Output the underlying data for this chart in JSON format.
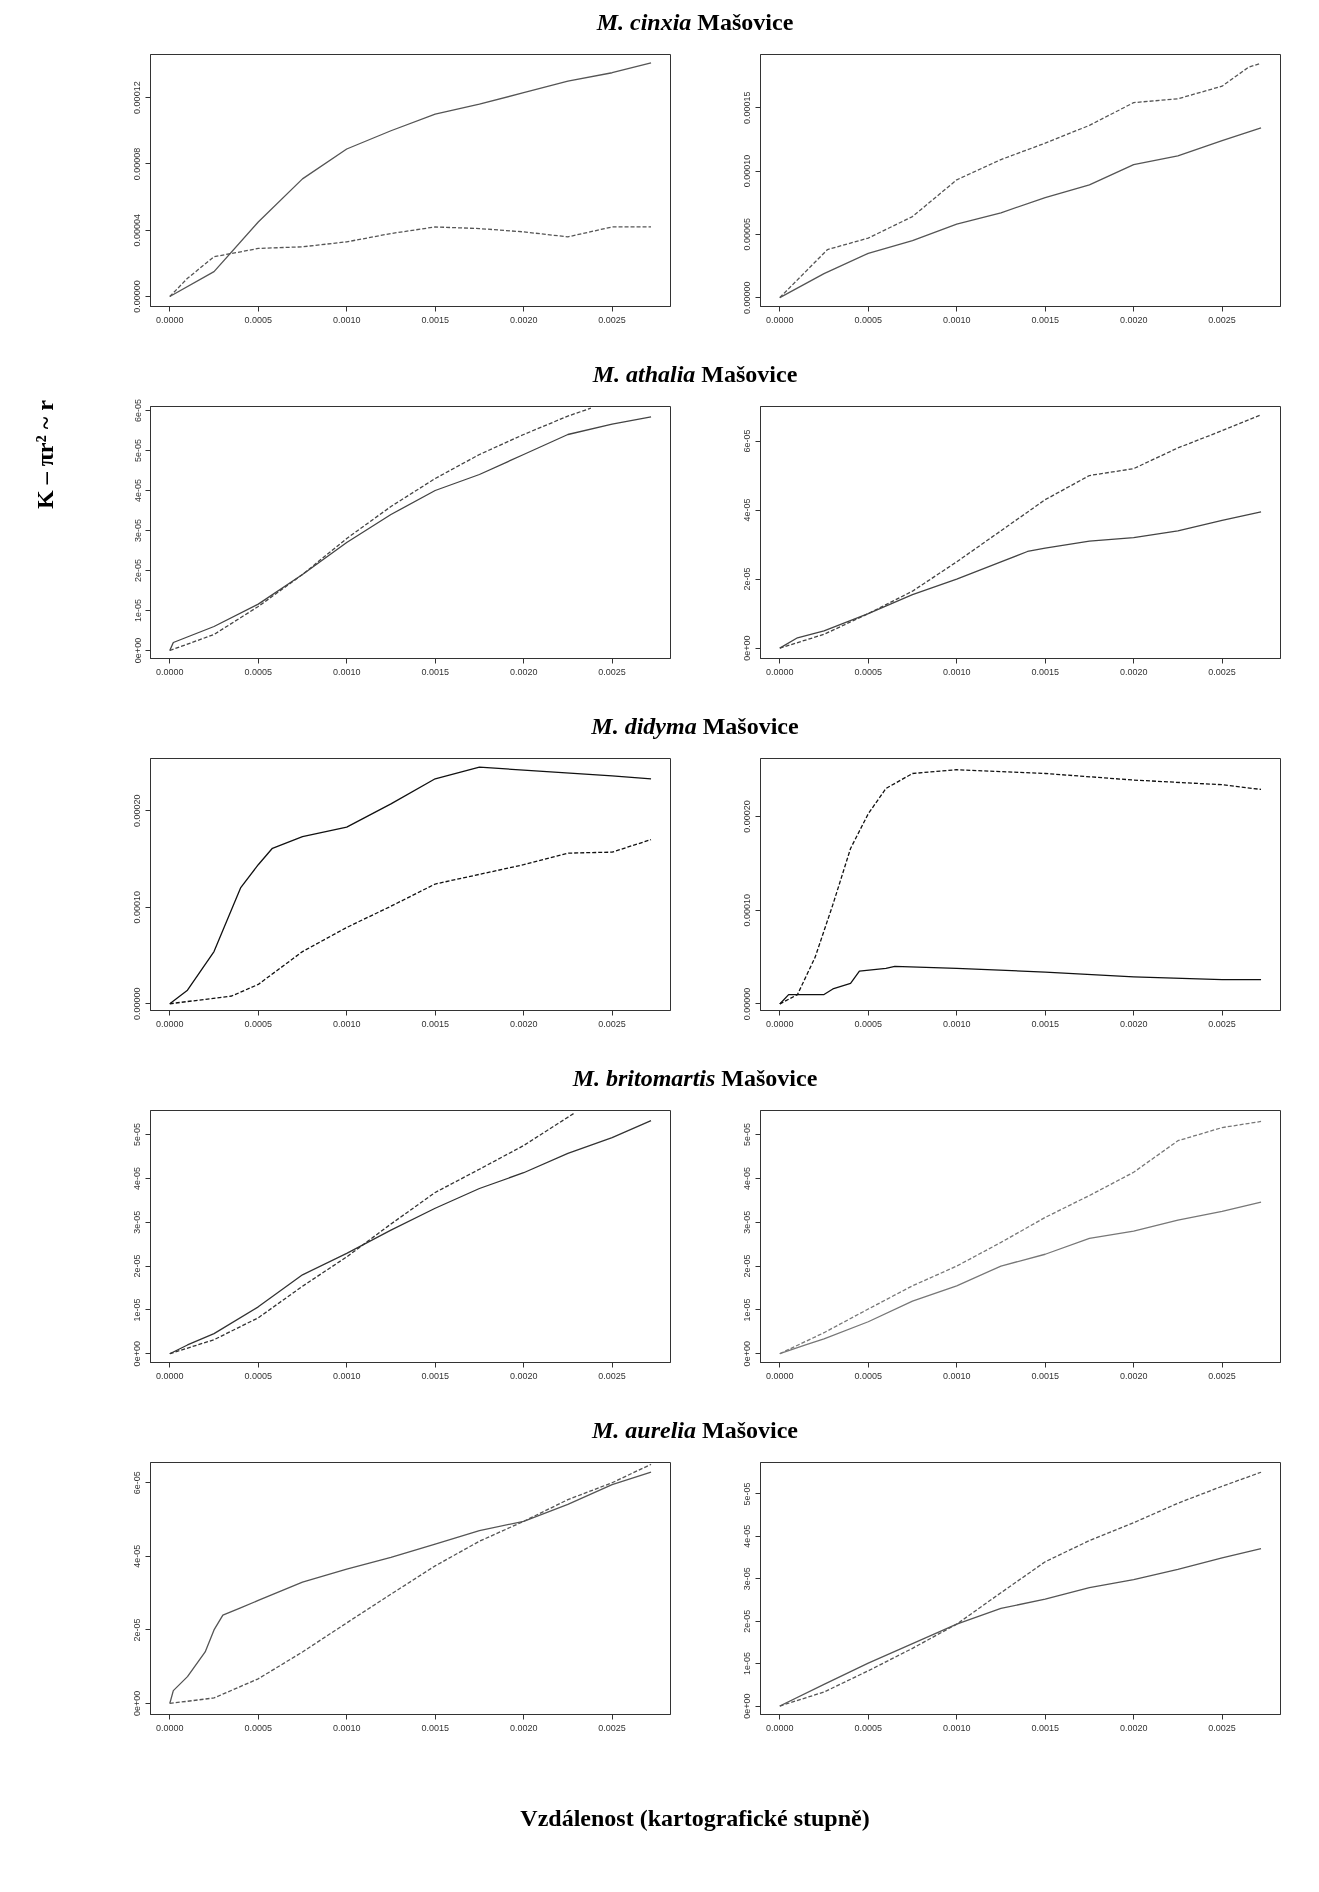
{
  "chart_data": [
    {
      "type": "line",
      "title": "M. cinxia Mašovice",
      "ylabel": "K – πr² ~ r",
      "xlim": [
        -0.000109,
        0.00283
      ],
      "xticks": [
        {
          "value": 0,
          "label": "0.0000"
        },
        {
          "value": 0.0005,
          "label": "0.0005"
        },
        {
          "value": 0.001,
          "label": "0.0010"
        },
        {
          "value": 0.0015,
          "label": "0.0015"
        },
        {
          "value": 0.002,
          "label": "0.0020"
        },
        {
          "value": 0.0025,
          "label": "0.0025"
        }
      ],
      "ylim": [
        -6e-06,
        0.000146
      ],
      "yticks": [
        {
          "value": 0,
          "label": "0.00000"
        },
        {
          "value": 4e-05,
          "label": "0.00004"
        },
        {
          "value": 8e-05,
          "label": "0.00008"
        },
        {
          "value": 0.00012,
          "label": "0.00012"
        }
      ],
      "series": [
        {
          "color": "#555555",
          "line_style": "solid",
          "x": [
            0,
            0.00025,
            0.0005,
            0.00075,
            0.001,
            0.00125,
            0.0015,
            0.00175,
            0.002,
            0.00225,
            0.0025,
            0.00272
          ],
          "values": [
            0,
            1.5e-05,
            4.5e-05,
            7.1e-05,
            8.9e-05,
            0.0001,
            0.00011,
            0.000116,
            0.000123,
            0.00013,
            0.000135,
            0.000141
          ]
        },
        {
          "color": "#555555",
          "line_style": "dashed",
          "x": [
            0,
            0.0001,
            0.00025,
            0.0005,
            0.00075,
            0.001,
            0.00125,
            0.0015,
            0.00175,
            0.002,
            0.00225,
            0.0025,
            0.00272
          ],
          "values": [
            0,
            1.1e-05,
            2.4e-05,
            2.9e-05,
            3e-05,
            3.3e-05,
            3.8e-05,
            4.2e-05,
            4.1e-05,
            3.9e-05,
            3.6e-05,
            4.2e-05,
            4.2e-05
          ]
        }
      ]
    },
    {
      "type": "line",
      "xlim": [
        -0.000109,
        0.00283
      ],
      "xticks": [
        {
          "value": 0,
          "label": "0.0000"
        },
        {
          "value": 0.0005,
          "label": "0.0005"
        },
        {
          "value": 0.001,
          "label": "0.0010"
        },
        {
          "value": 0.0015,
          "label": "0.0015"
        },
        {
          "value": 0.002,
          "label": "0.0020"
        },
        {
          "value": 0.0025,
          "label": "0.0025"
        }
      ],
      "ylim": [
        -7e-06,
        0.000192
      ],
      "yticks": [
        {
          "value": 0,
          "label": "0.00000"
        },
        {
          "value": 5e-05,
          "label": "0.00005"
        },
        {
          "value": 0.0001,
          "label": "0.00010"
        },
        {
          "value": 0.00015,
          "label": "0.00015"
        }
      ],
      "series": [
        {
          "color": "#555555",
          "line_style": "dashed",
          "x": [
            0,
            0.00027,
            0.0005,
            0.00075,
            0.001,
            0.00125,
            0.0015,
            0.00175,
            0.002,
            0.00225,
            0.0025,
            0.00265,
            0.00272
          ],
          "values": [
            0,
            3.8e-05,
            4.7e-05,
            6.4e-05,
            9.3e-05,
            0.000109,
            0.000122,
            0.000136,
            0.000154,
            0.000157,
            0.000167,
            0.000182,
            0.000185
          ]
        },
        {
          "color": "#555555",
          "line_style": "solid",
          "x": [
            0,
            0.00025,
            0.0005,
            0.00075,
            0.001,
            0.00125,
            0.0015,
            0.00175,
            0.002,
            0.00225,
            0.0025,
            0.00272
          ],
          "values": [
            0,
            1.9e-05,
            3.5e-05,
            4.5e-05,
            5.8e-05,
            6.7e-05,
            7.9e-05,
            8.9e-05,
            0.000105,
            0.000112,
            0.000124,
            0.000134
          ]
        }
      ]
    },
    {
      "type": "line",
      "title": "M. athalia Mašovice",
      "xlim": [
        -0.000109,
        0.00283
      ],
      "xticks": [
        {
          "value": 0,
          "label": "0.0000"
        },
        {
          "value": 0.0005,
          "label": "0.0005"
        },
        {
          "value": 0.001,
          "label": "0.0010"
        },
        {
          "value": 0.0015,
          "label": "0.0015"
        },
        {
          "value": 0.002,
          "label": "0.0020"
        },
        {
          "value": 0.0025,
          "label": "0.0025"
        }
      ],
      "ylim": [
        -2e-06,
        6.1e-05
      ],
      "yticks": [
        {
          "value": 0,
          "label": "0e+00"
        },
        {
          "value": 1e-05,
          "label": "1e-05"
        },
        {
          "value": 2e-05,
          "label": "2e-05"
        },
        {
          "value": 3e-05,
          "label": "3e-05"
        },
        {
          "value": 4e-05,
          "label": "4e-05"
        },
        {
          "value": 5e-05,
          "label": "5e-05"
        },
        {
          "value": 6e-05,
          "label": "6e-05"
        }
      ],
      "series": [
        {
          "color": "#444444",
          "line_style": "solid",
          "x": [
            0,
            2e-05,
            0.00025,
            0.0005,
            0.00075,
            0.001,
            0.00125,
            0.0015,
            0.00175,
            0.002,
            0.00225,
            0.0025,
            0.00272
          ],
          "values": [
            0,
            2e-06,
            6e-06,
            1.16e-05,
            1.9e-05,
            2.7e-05,
            3.4e-05,
            4e-05,
            4.4e-05,
            4.9e-05,
            5.4e-05,
            5.66e-05,
            5.84e-05
          ]
        },
        {
          "color": "#444444",
          "line_style": "dashed",
          "x": [
            0,
            0.00025,
            0.0005,
            0.00075,
            0.001,
            0.00125,
            0.0015,
            0.00175,
            0.002,
            0.00225,
            0.00238
          ],
          "values": [
            0,
            4e-06,
            1.1e-05,
            1.9e-05,
            2.8e-05,
            3.6e-05,
            4.3e-05,
            4.9e-05,
            5.4e-05,
            5.86e-05,
            6.06e-05
          ]
        }
      ]
    },
    {
      "type": "line",
      "xlim": [
        -0.000109,
        0.00283
      ],
      "xticks": [
        {
          "value": 0,
          "label": "0.0000"
        },
        {
          "value": 0.0005,
          "label": "0.0005"
        },
        {
          "value": 0.001,
          "label": "0.0010"
        },
        {
          "value": 0.0015,
          "label": "0.0015"
        },
        {
          "value": 0.002,
          "label": "0.0020"
        },
        {
          "value": 0.0025,
          "label": "0.0025"
        }
      ],
      "ylim": [
        -3e-06,
        7e-05
      ],
      "yticks": [
        {
          "value": 0,
          "label": "0e+00"
        },
        {
          "value": 2e-05,
          "label": "2e-05"
        },
        {
          "value": 4e-05,
          "label": "4e-05"
        },
        {
          "value": 6e-05,
          "label": "6e-05"
        }
      ],
      "series": [
        {
          "color": "#444444",
          "line_style": "dashed",
          "x": [
            0,
            0.00025,
            0.0005,
            0.00075,
            0.001,
            0.00125,
            0.0015,
            0.00175,
            0.002,
            0.00225,
            0.0025,
            0.00272
          ],
          "values": [
            0,
            4e-06,
            1e-05,
            1.65e-05,
            2.5e-05,
            3.4e-05,
            4.3e-05,
            5e-05,
            5.2e-05,
            5.8e-05,
            6.3e-05,
            6.76e-05
          ]
        },
        {
          "color": "#444444",
          "line_style": "solid",
          "x": [
            0,
            0.0001,
            0.00025,
            0.0005,
            0.00075,
            0.001,
            0.00125,
            0.0014,
            0.0015,
            0.00175,
            0.002,
            0.00225,
            0.0025,
            0.00272
          ],
          "values": [
            0,
            3e-06,
            5e-06,
            1e-05,
            1.55e-05,
            2e-05,
            2.5e-05,
            2.8e-05,
            2.9e-05,
            3.1e-05,
            3.2e-05,
            3.4e-05,
            3.7e-05,
            3.95e-05
          ]
        }
      ]
    },
    {
      "type": "line",
      "title": "M. didyma Mašovice",
      "xlim": [
        -0.000109,
        0.00283
      ],
      "xticks": [
        {
          "value": 0,
          "label": "0.0000"
        },
        {
          "value": 0.0005,
          "label": "0.0005"
        },
        {
          "value": 0.001,
          "label": "0.0010"
        },
        {
          "value": 0.0015,
          "label": "0.0015"
        },
        {
          "value": 0.002,
          "label": "0.0020"
        },
        {
          "value": 0.0025,
          "label": "0.0025"
        }
      ],
      "ylim": [
        -7e-06,
        0.000254
      ],
      "yticks": [
        {
          "value": 0,
          "label": "0.00000"
        },
        {
          "value": 0.0001,
          "label": "0.00010"
        },
        {
          "value": 0.0002,
          "label": "0.00020"
        }
      ],
      "series": [
        {
          "color": "#111111",
          "line_style": "solid",
          "x": [
            0,
            0.0001,
            0.00025,
            0.0004,
            0.0005,
            0.00058,
            0.00075,
            0.001,
            0.00125,
            0.0015,
            0.00175,
            0.002,
            0.0025,
            0.00272
          ],
          "values": [
            0,
            1.4e-05,
            5.4e-05,
            0.00012,
            0.000144,
            0.000161,
            0.000173,
            0.000183,
            0.000207,
            0.000233,
            0.000245,
            0.000242,
            0.000236,
            0.000233
          ]
        },
        {
          "color": "#111111",
          "line_style": "dashed",
          "x": [
            0,
            0.00035,
            0.0005,
            0.00075,
            0.001,
            0.00125,
            0.0015,
            0.00175,
            0.002,
            0.00225,
            0.0025,
            0.00272
          ],
          "values": [
            0,
            8e-06,
            2e-05,
            5.4e-05,
            7.9e-05,
            0.000101,
            0.000124,
            0.000134,
            0.000144,
            0.000156,
            0.000157,
            0.00017
          ]
        }
      ]
    },
    {
      "type": "line",
      "xlim": [
        -0.000109,
        0.00283
      ],
      "xticks": [
        {
          "value": 0,
          "label": "0.0000"
        },
        {
          "value": 0.0005,
          "label": "0.0005"
        },
        {
          "value": 0.001,
          "label": "0.0010"
        },
        {
          "value": 0.0015,
          "label": "0.0015"
        },
        {
          "value": 0.002,
          "label": "0.0020"
        },
        {
          "value": 0.0025,
          "label": "0.0025"
        }
      ],
      "ylim": [
        -7e-06,
        0.000262
      ],
      "yticks": [
        {
          "value": 0,
          "label": "0.00000"
        },
        {
          "value": 0.0001,
          "label": "0.00010"
        },
        {
          "value": 0.0002,
          "label": "0.00020"
        }
      ],
      "series": [
        {
          "color": "#111111",
          "line_style": "dashed",
          "x": [
            0,
            0.0001,
            0.0002,
            0.0003,
            0.0004,
            0.0005,
            0.0006,
            0.00075,
            0.001,
            0.0015,
            0.002,
            0.0025,
            0.00272
          ],
          "values": [
            0,
            1e-05,
            5e-05,
            0.000106,
            0.000166,
            0.000203,
            0.00023,
            0.000246,
            0.00025,
            0.000246,
            0.000239,
            0.000234,
            0.000229
          ]
        },
        {
          "color": "#111111",
          "line_style": "solid",
          "x": [
            0,
            5e-05,
            0.00025,
            0.0003,
            0.0004,
            0.00045,
            0.0006,
            0.00065,
            0.001,
            0.0015,
            0.002,
            0.0025,
            0.00272
          ],
          "values": [
            0,
            1e-05,
            1e-05,
            1.6e-05,
            2.2e-05,
            3.5e-05,
            3.8e-05,
            4e-05,
            3.8e-05,
            3.4e-05,
            2.9e-05,
            2.6e-05,
            2.6e-05
          ]
        }
      ]
    },
    {
      "type": "line",
      "title": "M. britomartis Mašovice",
      "xlim": [
        -0.000109,
        0.00283
      ],
      "xticks": [
        {
          "value": 0,
          "label": "0.0000"
        },
        {
          "value": 0.0005,
          "label": "0.0005"
        },
        {
          "value": 0.001,
          "label": "0.0010"
        },
        {
          "value": 0.0015,
          "label": "0.0015"
        },
        {
          "value": 0.002,
          "label": "0.0020"
        },
        {
          "value": 0.0025,
          "label": "0.0025"
        }
      ],
      "ylim": [
        -2e-06,
        5.55e-05
      ],
      "yticks": [
        {
          "value": 0,
          "label": "0e+00"
        },
        {
          "value": 1e-05,
          "label": "1e-05"
        },
        {
          "value": 2e-05,
          "label": "2e-05"
        },
        {
          "value": 3e-05,
          "label": "3e-05"
        },
        {
          "value": 4e-05,
          "label": "4e-05"
        },
        {
          "value": 5e-05,
          "label": "5e-05"
        }
      ],
      "series": [
        {
          "color": "#333333",
          "line_style": "solid",
          "x": [
            0,
            0.0001,
            0.00025,
            0.0005,
            0.00075,
            0.001,
            0.00125,
            0.0015,
            0.00175,
            0.002,
            0.00225,
            0.0025,
            0.00272
          ],
          "values": [
            0,
            2e-06,
            4.6e-06,
            1.07e-05,
            1.8e-05,
            2.29e-05,
            2.82e-05,
            3.32e-05,
            3.77e-05,
            4.13e-05,
            4.57e-05,
            4.93e-05,
            5.32e-05
          ]
        },
        {
          "color": "#333333",
          "line_style": "dashed",
          "x": [
            0,
            0.00025,
            0.0005,
            0.00075,
            0.001,
            0.00125,
            0.0015,
            0.00175,
            0.002,
            0.00229
          ],
          "values": [
            0,
            3.2e-06,
            8.2e-06,
            1.54e-05,
            2.21e-05,
            2.96e-05,
            3.68e-05,
            4.21e-05,
            4.75e-05,
            5.5e-05
          ]
        }
      ]
    },
    {
      "type": "line",
      "xlim": [
        -0.000109,
        0.00283
      ],
      "xticks": [
        {
          "value": 0,
          "label": "0.0000"
        },
        {
          "value": 0.0005,
          "label": "0.0005"
        },
        {
          "value": 0.001,
          "label": "0.0010"
        },
        {
          "value": 0.0015,
          "label": "0.0015"
        },
        {
          "value": 0.002,
          "label": "0.0020"
        },
        {
          "value": 0.0025,
          "label": "0.0025"
        }
      ],
      "ylim": [
        -2e-06,
        5.55e-05
      ],
      "yticks": [
        {
          "value": 0,
          "label": "0e+00"
        },
        {
          "value": 1e-05,
          "label": "1e-05"
        },
        {
          "value": 2e-05,
          "label": "2e-05"
        },
        {
          "value": 3e-05,
          "label": "3e-05"
        },
        {
          "value": 4e-05,
          "label": "4e-05"
        },
        {
          "value": 5e-05,
          "label": "5e-05"
        }
      ],
      "series": [
        {
          "color": "#777777",
          "line_style": "dashed",
          "x": [
            0,
            0.00025,
            0.0005,
            0.00075,
            0.001,
            0.00125,
            0.0015,
            0.00175,
            0.002,
            0.00225,
            0.0025,
            0.00272
          ],
          "values": [
            0,
            4.8e-06,
            1.02e-05,
            1.55e-05,
            2e-05,
            2.54e-05,
            3.11e-05,
            3.61e-05,
            4.14e-05,
            4.86e-05,
            5.16e-05,
            5.3e-05
          ]
        },
        {
          "color": "#777777",
          "line_style": "solid",
          "x": [
            0,
            0.00015,
            0.00025,
            0.0005,
            0.00075,
            0.001,
            0.00125,
            0.0015,
            0.00175,
            0.002,
            0.00225,
            0.0025,
            0.00272
          ],
          "values": [
            0,
            2.1e-06,
            3.4e-06,
            7.3e-06,
            1.2e-05,
            1.55e-05,
            2e-05,
            2.27e-05,
            2.63e-05,
            2.8e-05,
            3.05e-05,
            3.25e-05,
            3.46e-05
          ]
        }
      ]
    },
    {
      "type": "line",
      "title": "M. aurelia Mašovice",
      "xlim": [
        -0.000109,
        0.00283
      ],
      "xticks": [
        {
          "value": 0,
          "label": "0.0000"
        },
        {
          "value": 0.0005,
          "label": "0.0005"
        },
        {
          "value": 0.001,
          "label": "0.0010"
        },
        {
          "value": 0.0015,
          "label": "0.0015"
        },
        {
          "value": 0.002,
          "label": "0.0020"
        },
        {
          "value": 0.0025,
          "label": "0.0025"
        }
      ],
      "ylim": [
        -3e-06,
        6.55e-05
      ],
      "yticks": [
        {
          "value": 0,
          "label": "0e+00"
        },
        {
          "value": 2e-05,
          "label": "2e-05"
        },
        {
          "value": 4e-05,
          "label": "4e-05"
        },
        {
          "value": 6e-05,
          "label": "6e-05"
        }
      ],
      "series": [
        {
          "color": "#555555",
          "line_style": "solid",
          "x": [
            0,
            2e-05,
            0.0001,
            0.0002,
            0.00025,
            0.0003,
            0.0004,
            0.0005,
            0.00075,
            0.001,
            0.00125,
            0.0015,
            0.00175,
            0.002,
            0.00225,
            0.0025,
            0.00272
          ],
          "values": [
            0,
            3.5e-06,
            7.3e-06,
            1.4e-05,
            2e-05,
            2.4e-05,
            2.6e-05,
            2.8e-05,
            3.3e-05,
            3.65e-05,
            3.97e-05,
            4.33e-05,
            4.7e-05,
            4.95e-05,
            5.41e-05,
            5.95e-05,
            6.29e-05
          ]
        },
        {
          "color": "#555555",
          "line_style": "dashed",
          "x": [
            0,
            0.00025,
            0.0005,
            0.00075,
            0.001,
            0.00125,
            0.0015,
            0.00175,
            0.002,
            0.00225,
            0.0025,
            0.00272
          ],
          "values": [
            0,
            1.5e-06,
            6.7e-06,
            1.4e-05,
            2.19e-05,
            2.97e-05,
            3.74e-05,
            4.41e-05,
            4.95e-05,
            5.54e-05,
            6e-05,
            6.5e-05
          ]
        }
      ]
    },
    {
      "type": "line",
      "xlabel": "Vzdálenost (kartografické stupně)",
      "xlim": [
        -0.000109,
        0.00283
      ],
      "xticks": [
        {
          "value": 0,
          "label": "0.0000"
        },
        {
          "value": 0.0005,
          "label": "0.0005"
        },
        {
          "value": 0.001,
          "label": "0.0010"
        },
        {
          "value": 0.0015,
          "label": "0.0015"
        },
        {
          "value": 0.002,
          "label": "0.0020"
        },
        {
          "value": 0.0025,
          "label": "0.0025"
        }
      ],
      "ylim": [
        -2e-06,
        5.74e-05
      ],
      "yticks": [
        {
          "value": 0,
          "label": "0e+00"
        },
        {
          "value": 1e-05,
          "label": "1e-05"
        },
        {
          "value": 2e-05,
          "label": "2e-05"
        },
        {
          "value": 3e-05,
          "label": "3e-05"
        },
        {
          "value": 4e-05,
          "label": "4e-05"
        },
        {
          "value": 5e-05,
          "label": "5e-05"
        }
      ],
      "series": [
        {
          "color": "#555555",
          "line_style": "dashed",
          "x": [
            0,
            0.00025,
            0.0005,
            0.00075,
            0.001,
            0.00125,
            0.0015,
            0.00175,
            0.002,
            0.00225,
            0.0025,
            0.00272
          ],
          "values": [
            0,
            3.3e-06,
            8.3e-06,
            1.36e-05,
            1.93e-05,
            2.67e-05,
            3.4e-05,
            3.9e-05,
            4.32e-05,
            4.78e-05,
            5.18e-05,
            5.51e-05
          ]
        },
        {
          "color": "#555555",
          "line_style": "solid",
          "x": [
            0,
            0.00025,
            0.0005,
            0.00075,
            0.001,
            0.00125,
            0.0015,
            0.00175,
            0.002,
            0.00225,
            0.0025,
            0.00272
          ],
          "values": [
            0,
            5.1e-06,
            1.01e-05,
            1.47e-05,
            1.93e-05,
            2.3e-05,
            2.52e-05,
            2.79e-05,
            2.98e-05,
            3.22e-05,
            3.49e-05,
            3.71e-05
          ]
        }
      ]
    }
  ]
}
